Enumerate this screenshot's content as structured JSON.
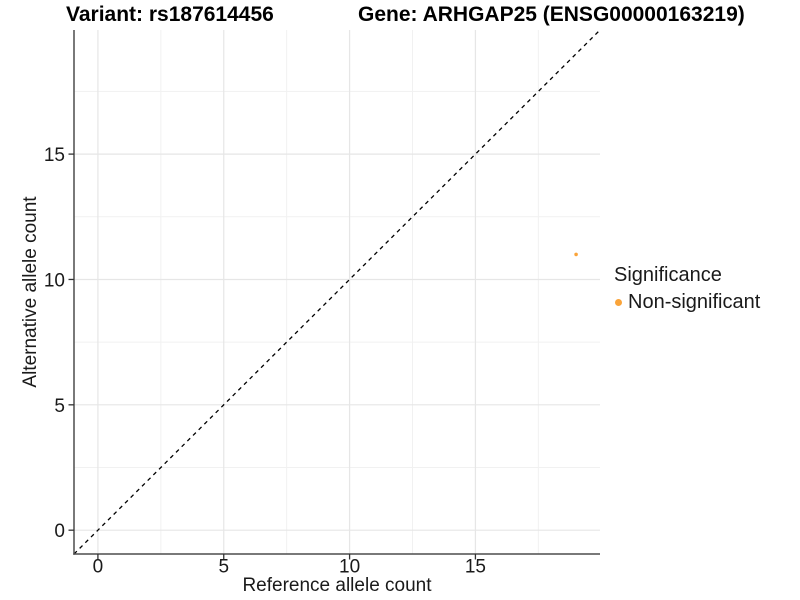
{
  "chart_data": {
    "type": "scatter",
    "titles": {
      "variant": "Variant: rs187614456",
      "gene": "Gene: ARHGAP25 (ENSG00000163219)"
    },
    "xlabel": "Reference allele count",
    "ylabel": "Alternative allele count",
    "xlim": [
      -0.95,
      19.95
    ],
    "ylim": [
      -0.95,
      19.95
    ],
    "xticks": [
      0,
      5,
      10,
      15
    ],
    "yticks": [
      0,
      5,
      10,
      15
    ],
    "xticks_minor": [
      2.5,
      7.5,
      12.5,
      17.5
    ],
    "yticks_minor": [
      2.5,
      7.5,
      12.5,
      17.5
    ],
    "grid": true,
    "reference_line": {
      "kind": "identity",
      "style": "dashed",
      "color": "#000000"
    },
    "series": [
      {
        "name": "Non-significant",
        "color": "#FAA43A",
        "points": [
          {
            "x": 19,
            "y": 11
          }
        ]
      }
    ],
    "legend": {
      "title": "Significance",
      "position": "right",
      "items": [
        {
          "label": "Non-significant",
          "color": "#FAA43A"
        }
      ]
    }
  },
  "colors": {
    "point": "#FAA43A",
    "axis_line": "#4d4d4d",
    "tick_mark": "#333333",
    "grid_major": "#e6e6e6",
    "grid_minor": "#f1f1f1",
    "text": "#1a1a1a",
    "identity_line": "#000000"
  }
}
